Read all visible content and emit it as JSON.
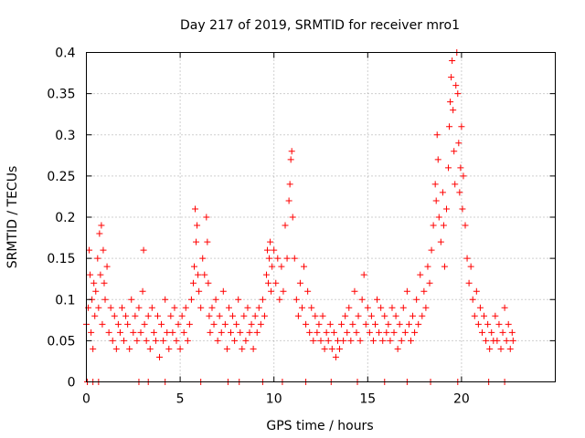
{
  "chart_data": {
    "type": "scatter",
    "title": "Day 217 of 2019, SRMTID for receiver mro1",
    "xlabel": "GPS time / hours",
    "ylabel": "SRMTID / TECUs",
    "xlim": [
      0,
      25
    ],
    "ylim": [
      0,
      0.4
    ],
    "x_ticks": [
      0,
      5,
      10,
      15,
      20
    ],
    "x_tick_labels": [
      "0",
      "5",
      "10",
      "15",
      "20"
    ],
    "y_ticks": [
      0,
      0.05,
      0.1,
      0.15,
      0.2,
      0.25,
      0.3,
      0.35,
      0.4
    ],
    "y_tick_labels": [
      "0",
      "0.05",
      "0.1",
      "0.15",
      "0.2",
      "0.25",
      "0.3",
      "0.35",
      "0.4"
    ],
    "grid": true,
    "marker": "+",
    "color": "#ff0000",
    "series": [
      {
        "name": "SRMTID",
        "points": [
          [
            0.0,
            0.07
          ],
          [
            0.1,
            0.09
          ],
          [
            0.15,
            0.16
          ],
          [
            0.2,
            0.13
          ],
          [
            0.25,
            0.06
          ],
          [
            0.3,
            0.1
          ],
          [
            0.35,
            0.04
          ],
          [
            0.4,
            0.12
          ],
          [
            0.45,
            0.08
          ],
          [
            0.5,
            0.11
          ],
          [
            0.6,
            0.15
          ],
          [
            0.65,
            0.09
          ],
          [
            0.7,
            0.18
          ],
          [
            0.75,
            0.13
          ],
          [
            0.8,
            0.19
          ],
          [
            0.85,
            0.07
          ],
          [
            0.9,
            0.16
          ],
          [
            0.95,
            0.12
          ],
          [
            1.0,
            0.1
          ],
          [
            1.1,
            0.14
          ],
          [
            1.2,
            0.06
          ],
          [
            1.3,
            0.09
          ],
          [
            1.4,
            0.05
          ],
          [
            1.5,
            0.08
          ],
          [
            1.6,
            0.04
          ],
          [
            1.7,
            0.07
          ],
          [
            1.8,
            0.06
          ],
          [
            1.9,
            0.09
          ],
          [
            2.0,
            0.05
          ],
          [
            2.1,
            0.08
          ],
          [
            2.2,
            0.07
          ],
          [
            2.3,
            0.04
          ],
          [
            2.4,
            0.1
          ],
          [
            2.5,
            0.06
          ],
          [
            2.6,
            0.08
          ],
          [
            2.7,
            0.05
          ],
          [
            2.8,
            0.09
          ],
          [
            2.9,
            0.06
          ],
          [
            3.0,
            0.11
          ],
          [
            3.05,
            0.16
          ],
          [
            3.1,
            0.07
          ],
          [
            3.2,
            0.05
          ],
          [
            3.3,
            0.08
          ],
          [
            3.4,
            0.04
          ],
          [
            3.5,
            0.09
          ],
          [
            3.6,
            0.06
          ],
          [
            3.7,
            0.05
          ],
          [
            3.8,
            0.08
          ],
          [
            3.9,
            0.03
          ],
          [
            4.0,
            0.07
          ],
          [
            4.1,
            0.05
          ],
          [
            4.2,
            0.1
          ],
          [
            4.3,
            0.06
          ],
          [
            4.4,
            0.04
          ],
          [
            4.5,
            0.08
          ],
          [
            4.6,
            0.06
          ],
          [
            4.7,
            0.09
          ],
          [
            4.8,
            0.05
          ],
          [
            4.9,
            0.07
          ],
          [
            5.0,
            0.04
          ],
          [
            5.1,
            0.08
          ],
          [
            5.2,
            0.06
          ],
          [
            5.3,
            0.09
          ],
          [
            5.4,
            0.05
          ],
          [
            5.5,
            0.07
          ],
          [
            5.6,
            0.1
          ],
          [
            5.7,
            0.12
          ],
          [
            5.75,
            0.14
          ],
          [
            5.8,
            0.21
          ],
          [
            5.85,
            0.17
          ],
          [
            5.9,
            0.19
          ],
          [
            5.95,
            0.13
          ],
          [
            6.0,
            0.11
          ],
          [
            6.1,
            0.09
          ],
          [
            6.2,
            0.15
          ],
          [
            6.3,
            0.13
          ],
          [
            6.4,
            0.2
          ],
          [
            6.45,
            0.17
          ],
          [
            6.5,
            0.12
          ],
          [
            6.55,
            0.08
          ],
          [
            6.6,
            0.06
          ],
          [
            6.7,
            0.09
          ],
          [
            6.8,
            0.07
          ],
          [
            6.9,
            0.1
          ],
          [
            7.0,
            0.05
          ],
          [
            7.1,
            0.08
          ],
          [
            7.2,
            0.06
          ],
          [
            7.3,
            0.11
          ],
          [
            7.4,
            0.07
          ],
          [
            7.5,
            0.04
          ],
          [
            7.6,
            0.09
          ],
          [
            7.7,
            0.06
          ],
          [
            7.8,
            0.08
          ],
          [
            7.9,
            0.05
          ],
          [
            8.0,
            0.07
          ],
          [
            8.1,
            0.1
          ],
          [
            8.2,
            0.06
          ],
          [
            8.3,
            0.04
          ],
          [
            8.4,
            0.08
          ],
          [
            8.5,
            0.05
          ],
          [
            8.6,
            0.09
          ],
          [
            8.7,
            0.06
          ],
          [
            8.8,
            0.07
          ],
          [
            8.9,
            0.04
          ],
          [
            9.0,
            0.08
          ],
          [
            9.1,
            0.06
          ],
          [
            9.2,
            0.09
          ],
          [
            9.3,
            0.07
          ],
          [
            9.4,
            0.1
          ],
          [
            9.5,
            0.08
          ],
          [
            9.6,
            0.13
          ],
          [
            9.65,
            0.16
          ],
          [
            9.7,
            0.12
          ],
          [
            9.75,
            0.15
          ],
          [
            9.8,
            0.17
          ],
          [
            9.85,
            0.11
          ],
          [
            9.9,
            0.14
          ],
          [
            10.0,
            0.16
          ],
          [
            10.1,
            0.12
          ],
          [
            10.2,
            0.15
          ],
          [
            10.3,
            0.1
          ],
          [
            10.4,
            0.14
          ],
          [
            10.5,
            0.11
          ],
          [
            10.6,
            0.19
          ],
          [
            10.7,
            0.15
          ],
          [
            10.8,
            0.22
          ],
          [
            10.85,
            0.24
          ],
          [
            10.9,
            0.27
          ],
          [
            10.95,
            0.28
          ],
          [
            11.0,
            0.2
          ],
          [
            11.1,
            0.15
          ],
          [
            11.2,
            0.1
          ],
          [
            11.3,
            0.08
          ],
          [
            11.4,
            0.12
          ],
          [
            11.5,
            0.09
          ],
          [
            11.6,
            0.14
          ],
          [
            11.7,
            0.07
          ],
          [
            11.8,
            0.11
          ],
          [
            11.9,
            0.06
          ],
          [
            12.0,
            0.09
          ],
          [
            12.1,
            0.05
          ],
          [
            12.2,
            0.08
          ],
          [
            12.3,
            0.06
          ],
          [
            12.4,
            0.07
          ],
          [
            12.5,
            0.05
          ],
          [
            12.6,
            0.08
          ],
          [
            12.7,
            0.04
          ],
          [
            12.8,
            0.06
          ],
          [
            12.9,
            0.05
          ],
          [
            13.0,
            0.07
          ],
          [
            13.1,
            0.04
          ],
          [
            13.2,
            0.06
          ],
          [
            13.3,
            0.03
          ],
          [
            13.4,
            0.05
          ],
          [
            13.5,
            0.04
          ],
          [
            13.6,
            0.07
          ],
          [
            13.7,
            0.05
          ],
          [
            13.8,
            0.08
          ],
          [
            13.9,
            0.06
          ],
          [
            14.0,
            0.09
          ],
          [
            14.1,
            0.05
          ],
          [
            14.2,
            0.07
          ],
          [
            14.3,
            0.11
          ],
          [
            14.4,
            0.06
          ],
          [
            14.5,
            0.08
          ],
          [
            14.6,
            0.05
          ],
          [
            14.7,
            0.1
          ],
          [
            14.8,
            0.13
          ],
          [
            14.9,
            0.07
          ],
          [
            15.0,
            0.09
          ],
          [
            15.1,
            0.06
          ],
          [
            15.2,
            0.08
          ],
          [
            15.3,
            0.05
          ],
          [
            15.4,
            0.07
          ],
          [
            15.5,
            0.1
          ],
          [
            15.6,
            0.06
          ],
          [
            15.7,
            0.09
          ],
          [
            15.8,
            0.05
          ],
          [
            15.9,
            0.08
          ],
          [
            16.0,
            0.06
          ],
          [
            16.1,
            0.07
          ],
          [
            16.2,
            0.05
          ],
          [
            16.3,
            0.09
          ],
          [
            16.4,
            0.06
          ],
          [
            16.5,
            0.08
          ],
          [
            16.6,
            0.04
          ],
          [
            16.7,
            0.07
          ],
          [
            16.8,
            0.05
          ],
          [
            16.9,
            0.09
          ],
          [
            17.0,
            0.06
          ],
          [
            17.1,
            0.11
          ],
          [
            17.2,
            0.07
          ],
          [
            17.3,
            0.05
          ],
          [
            17.4,
            0.08
          ],
          [
            17.5,
            0.06
          ],
          [
            17.6,
            0.1
          ],
          [
            17.7,
            0.07
          ],
          [
            17.8,
            0.13
          ],
          [
            17.9,
            0.08
          ],
          [
            18.0,
            0.11
          ],
          [
            18.1,
            0.09
          ],
          [
            18.2,
            0.14
          ],
          [
            18.3,
            0.12
          ],
          [
            18.4,
            0.16
          ],
          [
            18.5,
            0.19
          ],
          [
            18.6,
            0.24
          ],
          [
            18.65,
            0.22
          ],
          [
            18.7,
            0.3
          ],
          [
            18.75,
            0.27
          ],
          [
            18.8,
            0.2
          ],
          [
            18.9,
            0.17
          ],
          [
            19.0,
            0.23
          ],
          [
            19.05,
            0.19
          ],
          [
            19.1,
            0.14
          ],
          [
            19.2,
            0.21
          ],
          [
            19.3,
            0.26
          ],
          [
            19.35,
            0.31
          ],
          [
            19.4,
            0.34
          ],
          [
            19.45,
            0.37
          ],
          [
            19.5,
            0.39
          ],
          [
            19.55,
            0.33
          ],
          [
            19.6,
            0.28
          ],
          [
            19.65,
            0.24
          ],
          [
            19.7,
            0.36
          ],
          [
            19.75,
            0.4
          ],
          [
            19.8,
            0.35
          ],
          [
            19.85,
            0.29
          ],
          [
            19.9,
            0.23
          ],
          [
            19.95,
            0.26
          ],
          [
            20.0,
            0.31
          ],
          [
            20.05,
            0.21
          ],
          [
            20.1,
            0.25
          ],
          [
            20.2,
            0.19
          ],
          [
            20.3,
            0.15
          ],
          [
            20.4,
            0.12
          ],
          [
            20.5,
            0.14
          ],
          [
            20.6,
            0.1
          ],
          [
            20.7,
            0.08
          ],
          [
            20.8,
            0.11
          ],
          [
            20.9,
            0.07
          ],
          [
            21.0,
            0.09
          ],
          [
            21.1,
            0.06
          ],
          [
            21.2,
            0.08
          ],
          [
            21.3,
            0.05
          ],
          [
            21.4,
            0.07
          ],
          [
            21.5,
            0.04
          ],
          [
            21.6,
            0.06
          ],
          [
            21.7,
            0.05
          ],
          [
            21.8,
            0.08
          ],
          [
            21.9,
            0.05
          ],
          [
            22.0,
            0.07
          ],
          [
            22.1,
            0.04
          ],
          [
            22.2,
            0.06
          ],
          [
            22.3,
            0.09
          ],
          [
            22.4,
            0.05
          ],
          [
            22.5,
            0.07
          ],
          [
            22.6,
            0.04
          ],
          [
            22.7,
            0.06
          ],
          [
            22.75,
            0.05
          ],
          [
            0.05,
            0.0
          ],
          [
            0.35,
            0.0
          ],
          [
            0.65,
            0.0
          ],
          [
            2.8,
            0.0
          ],
          [
            3.3,
            0.0
          ],
          [
            4.2,
            0.0
          ],
          [
            6.1,
            0.0
          ],
          [
            7.55,
            0.0
          ],
          [
            8.15,
            0.0
          ],
          [
            9.4,
            0.0
          ],
          [
            10.45,
            0.0
          ],
          [
            11.7,
            0.0
          ],
          [
            13.05,
            0.0
          ],
          [
            14.45,
            0.0
          ],
          [
            15.9,
            0.0
          ],
          [
            17.1,
            0.0
          ],
          [
            18.35,
            0.0
          ],
          [
            19.8,
            0.0
          ],
          [
            21.45,
            0.0
          ],
          [
            22.3,
            0.0
          ]
        ]
      }
    ]
  }
}
